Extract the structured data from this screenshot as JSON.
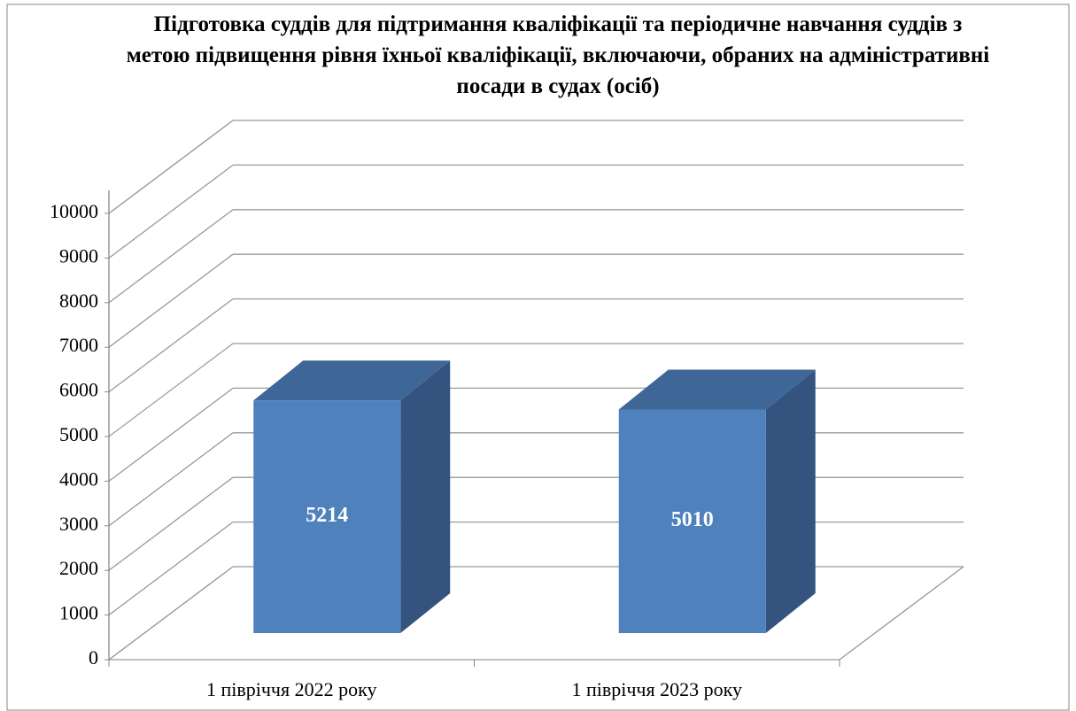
{
  "chart_data": {
    "type": "bar",
    "title": "Підготовка суддів для підтримання кваліфікації та періодичне навчання суддів з метою підвищення рівня їхньої кваліфікації, включаючи, обраних на адміністративні посади в судах (осіб)",
    "categories": [
      "1 півріччя 2022 року",
      "1 півріччя 2023 року"
    ],
    "values": [
      5214,
      5010
    ],
    "color": "#4f81bd",
    "ylim": [
      0,
      10000
    ],
    "yticks": [
      0,
      1000,
      2000,
      3000,
      4000,
      5000,
      6000,
      7000,
      8000,
      9000,
      10000
    ],
    "grid": true
  }
}
